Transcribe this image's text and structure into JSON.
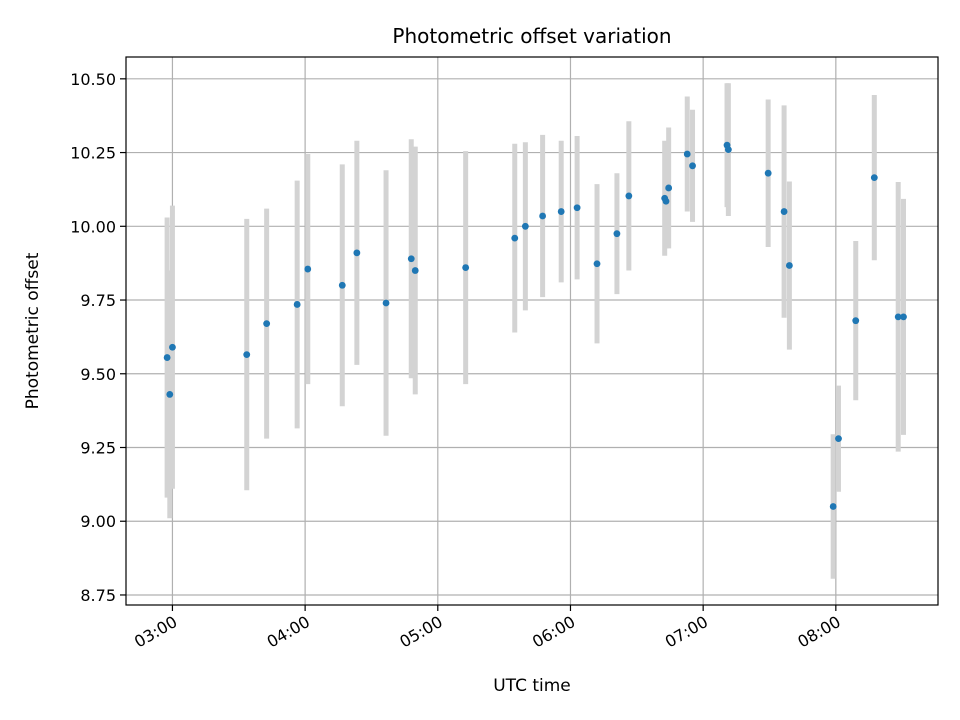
{
  "chart_data": {
    "type": "scatter",
    "title": "Photometric offset variation",
    "xlabel": "UTC time",
    "ylabel": "Photometric offset",
    "x_unit": "hours UTC",
    "xlim": [
      2.65,
      8.77
    ],
    "ylim": [
      8.716,
      10.574
    ],
    "grid": true,
    "x_ticks": [
      {
        "value": 3,
        "label": "03:00"
      },
      {
        "value": 4,
        "label": "04:00"
      },
      {
        "value": 5,
        "label": "05:00"
      },
      {
        "value": 6,
        "label": "06:00"
      },
      {
        "value": 7,
        "label": "07:00"
      },
      {
        "value": 8,
        "label": "08:00"
      }
    ],
    "y_ticks": [
      {
        "value": 8.75,
        "label": "8.75"
      },
      {
        "value": 9.0,
        "label": "9.00"
      },
      {
        "value": 9.25,
        "label": "9.25"
      },
      {
        "value": 9.5,
        "label": "9.50"
      },
      {
        "value": 9.75,
        "label": "9.75"
      },
      {
        "value": 10.0,
        "label": "10.00"
      },
      {
        "value": 10.25,
        "label": "10.25"
      },
      {
        "value": 10.5,
        "label": "10.50"
      }
    ],
    "colors": {
      "point": "#1f77b4",
      "error_bar": "#d3d3d3",
      "grid": "#b0b0b0"
    },
    "points": [
      {
        "x": 2.96,
        "y": 9.555,
        "err": 0.475
      },
      {
        "x": 2.98,
        "y": 9.43,
        "err": 0.42
      },
      {
        "x": 3.0,
        "y": 9.59,
        "err": 0.48
      },
      {
        "x": 3.56,
        "y": 9.565,
        "err": 0.46
      },
      {
        "x": 3.71,
        "y": 9.67,
        "err": 0.39
      },
      {
        "x": 3.94,
        "y": 9.735,
        "err": 0.42
      },
      {
        "x": 4.02,
        "y": 9.855,
        "err": 0.39
      },
      {
        "x": 4.28,
        "y": 9.8,
        "err": 0.41
      },
      {
        "x": 4.39,
        "y": 9.91,
        "err": 0.38
      },
      {
        "x": 4.61,
        "y": 9.74,
        "err": 0.45
      },
      {
        "x": 4.8,
        "y": 9.89,
        "err": 0.405
      },
      {
        "x": 4.83,
        "y": 9.85,
        "err": 0.42
      },
      {
        "x": 5.21,
        "y": 9.86,
        "err": 0.395
      },
      {
        "x": 5.58,
        "y": 9.96,
        "err": 0.32
      },
      {
        "x": 5.66,
        "y": 10.0,
        "err": 0.285
      },
      {
        "x": 5.79,
        "y": 10.035,
        "err": 0.275
      },
      {
        "x": 5.93,
        "y": 10.05,
        "err": 0.24
      },
      {
        "x": 6.05,
        "y": 10.063,
        "err": 0.243
      },
      {
        "x": 6.2,
        "y": 9.873,
        "err": 0.27
      },
      {
        "x": 6.35,
        "y": 9.975,
        "err": 0.205
      },
      {
        "x": 6.44,
        "y": 10.103,
        "err": 0.253
      },
      {
        "x": 6.71,
        "y": 10.095,
        "err": 0.195
      },
      {
        "x": 6.72,
        "y": 10.085,
        "err": 0.16
      },
      {
        "x": 6.74,
        "y": 10.13,
        "err": 0.205
      },
      {
        "x": 6.88,
        "y": 10.245,
        "err": 0.195
      },
      {
        "x": 6.92,
        "y": 10.205,
        "err": 0.19
      },
      {
        "x": 7.18,
        "y": 10.275,
        "err": 0.21
      },
      {
        "x": 7.19,
        "y": 10.26,
        "err": 0.225
      },
      {
        "x": 7.49,
        "y": 10.18,
        "err": 0.25
      },
      {
        "x": 7.61,
        "y": 10.05,
        "err": 0.36
      },
      {
        "x": 7.65,
        "y": 9.867,
        "err": 0.285
      },
      {
        "x": 7.98,
        "y": 9.05,
        "err": 0.245
      },
      {
        "x": 8.02,
        "y": 9.28,
        "err": 0.18
      },
      {
        "x": 8.15,
        "y": 9.68,
        "err": 0.27
      },
      {
        "x": 8.29,
        "y": 10.165,
        "err": 0.28
      },
      {
        "x": 8.47,
        "y": 9.693,
        "err": 0.457
      },
      {
        "x": 8.51,
        "y": 9.693,
        "err": 0.4
      }
    ]
  }
}
